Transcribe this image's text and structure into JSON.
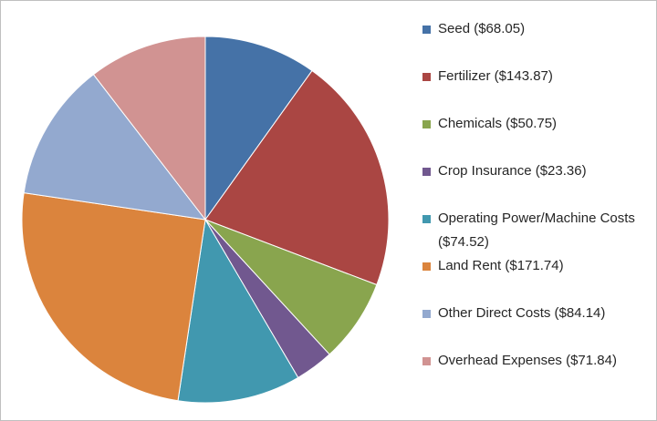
{
  "chart_data": {
    "type": "pie",
    "title": "",
    "slices": [
      {
        "label": "Seed ($68.05)",
        "name": "Seed",
        "value": 68.05,
        "color": "#4572A7"
      },
      {
        "label": "Fertilizer ($143.87)",
        "name": "Fertilizer",
        "value": 143.87,
        "color": "#AA4643"
      },
      {
        "label": "Chemicals ($50.75)",
        "name": "Chemicals",
        "value": 50.75,
        "color": "#89A54E"
      },
      {
        "label": "Crop Insurance ($23.36)",
        "name": "Crop Insurance",
        "value": 23.36,
        "color": "#71588F"
      },
      {
        "label": "Operating Power/Machine Costs ($74.52)",
        "name": "Operating Power/Machine Costs",
        "value": 74.52,
        "color": "#4198AF"
      },
      {
        "label": "Land Rent ($171.74)",
        "name": "Land Rent",
        "value": 171.74,
        "color": "#DB843D"
      },
      {
        "label": "Other Direct Costs ($84.14)",
        "name": "Other Direct Costs",
        "value": 84.14,
        "color": "#93A9CF"
      },
      {
        "label": "Overhead Expenses ($71.84)",
        "name": "Overhead Expenses",
        "value": 71.84,
        "color": "#D19392"
      }
    ],
    "start_angle_deg": 0,
    "direction": "clockwise",
    "legend_position": "right"
  }
}
